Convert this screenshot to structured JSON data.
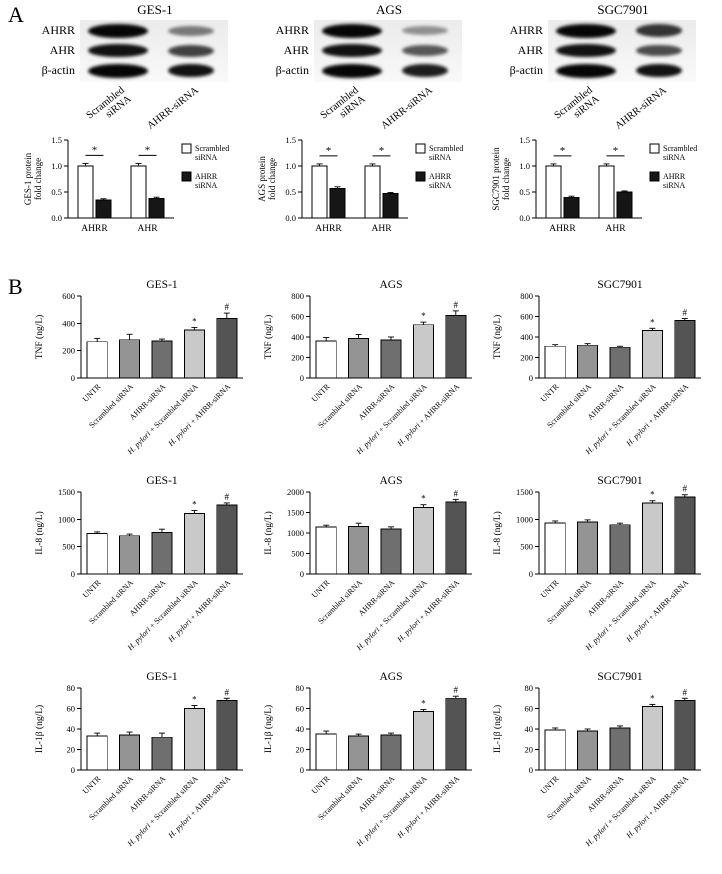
{
  "figure": {
    "panelA_label": "A",
    "panelB_label": "B"
  },
  "panelA": {
    "blots": [
      {
        "title": "GES-1",
        "band_labels": [
          "AHRR",
          "AHR",
          "β-actin"
        ],
        "band_intensities": [
          [
            1.0,
            0.5
          ],
          [
            0.95,
            0.75
          ],
          [
            1.0,
            0.95
          ]
        ],
        "lanes": [
          "Scrambled\nsiRNA",
          "AHRR-siRNA"
        ],
        "chart": {
          "ylabel_lines": [
            "GES-1 protein",
            "fold change"
          ],
          "ylim": [
            0,
            1.5
          ],
          "yticks": [
            0,
            0.5,
            1.0,
            1.5
          ],
          "ytick_labels": [
            "0.0",
            "0.5",
            "1.0",
            "1.5"
          ],
          "categories": [
            "AHRR",
            "AHR"
          ],
          "series": [
            {
              "legend_lines": [
                "Scrambled",
                "siRNA"
              ],
              "color": "#ffffff",
              "values": [
                1.0,
                1.0
              ],
              "errors": [
                0.05,
                0.05
              ]
            },
            {
              "legend_lines": [
                "AHRR",
                "siRNA"
              ],
              "color": "#161616",
              "values": [
                0.35,
                0.38
              ],
              "errors": [
                0.02,
                0.02
              ]
            }
          ],
          "sig_marks": [
            "*",
            "*"
          ]
        }
      },
      {
        "title": "AGS",
        "band_labels": [
          "AHRR",
          "AHR",
          "β-actin"
        ],
        "band_intensities": [
          [
            1.0,
            0.4
          ],
          [
            0.95,
            0.65
          ],
          [
            1.0,
            0.9
          ]
        ],
        "lanes": [
          "Scrambled\nsiRNA",
          "AHRR-siRNA"
        ],
        "chart": {
          "ylabel_lines": [
            "AGS protein",
            "fold change"
          ],
          "ylim": [
            0,
            1.5
          ],
          "yticks": [
            0,
            0.5,
            1.0,
            1.5
          ],
          "ytick_labels": [
            "0.0",
            "0.5",
            "1.0",
            "1.5"
          ],
          "categories": [
            "AHRR",
            "AHR"
          ],
          "series": [
            {
              "legend_lines": [
                "Scrambled",
                "siRNA"
              ],
              "color": "#ffffff",
              "values": [
                1.0,
                1.0
              ],
              "errors": [
                0.04,
                0.04
              ]
            },
            {
              "legend_lines": [
                "AHRR",
                "siRNA"
              ],
              "color": "#161616",
              "values": [
                0.57,
                0.47
              ],
              "errors": [
                0.03,
                0.02
              ]
            }
          ],
          "sig_marks": [
            "*",
            "*"
          ]
        }
      },
      {
        "title": "SGC7901",
        "band_labels": [
          "AHRR",
          "AHR",
          "β-actin"
        ],
        "band_intensities": [
          [
            1.0,
            0.8
          ],
          [
            0.95,
            0.7
          ],
          [
            1.0,
            0.95
          ]
        ],
        "lanes": [
          "Scrambled\nsiRNA",
          "AHRR-siRNA"
        ],
        "chart": {
          "ylabel_lines": [
            "SGC7901 protein",
            "fold change"
          ],
          "ylim": [
            0,
            1.5
          ],
          "yticks": [
            0,
            0.5,
            1.0,
            1.5
          ],
          "ytick_labels": [
            "0.0",
            "0.5",
            "1.0",
            "1.5"
          ],
          "categories": [
            "AHRR",
            "AHR"
          ],
          "series": [
            {
              "legend_lines": [
                "Scrambled",
                "siRNA"
              ],
              "color": "#ffffff",
              "values": [
                1.0,
                1.0
              ],
              "errors": [
                0.04,
                0.04
              ]
            },
            {
              "legend_lines": [
                "AHRR",
                "siRNA"
              ],
              "color": "#161616",
              "values": [
                0.4,
                0.5
              ],
              "errors": [
                0.02,
                0.02
              ]
            }
          ],
          "sig_marks": [
            "*",
            "*"
          ]
        }
      }
    ]
  },
  "panelB": {
    "italic_token": "H. pylori",
    "categories": [
      "UNTR",
      "Scrambled siRNA",
      "AHRR-siRNA",
      "H. pylori + Scrambled siRNA",
      "H. pylori + AHRR-siRNA"
    ],
    "bar_colors": [
      "#ffffff",
      "#949494",
      "#6f6f6f",
      "#c9c9c9",
      "#545454"
    ],
    "charts": [
      {
        "title": "GES-1",
        "ylabel": "TNF (ng/L)",
        "ylim": [
          0,
          600
        ],
        "yticks": [
          0,
          200,
          400,
          600
        ],
        "ytick_labels": [
          "0",
          "200",
          "400",
          "600"
        ],
        "values": [
          265,
          280,
          270,
          350,
          435
        ],
        "errors": [
          25,
          40,
          15,
          20,
          40
        ],
        "annotations": [
          "",
          "",
          "",
          "*",
          "#"
        ]
      },
      {
        "title": "AGS",
        "ylabel": "TNF (ng/L)",
        "ylim": [
          0,
          800
        ],
        "yticks": [
          0,
          200,
          400,
          600,
          800
        ],
        "ytick_labels": [
          "0",
          "200",
          "400",
          "600",
          "800"
        ],
        "values": [
          360,
          385,
          370,
          520,
          610
        ],
        "errors": [
          35,
          40,
          30,
          25,
          45
        ],
        "annotations": [
          "",
          "",
          "",
          "*",
          "#"
        ]
      },
      {
        "title": "SGC7901",
        "ylabel": "TNF (ng/L)",
        "ylim": [
          0,
          800
        ],
        "yticks": [
          0,
          200,
          400,
          600,
          800
        ],
        "ytick_labels": [
          "0",
          "200",
          "400",
          "600",
          "800"
        ],
        "values": [
          310,
          320,
          300,
          465,
          560
        ],
        "errors": [
          15,
          15,
          10,
          20,
          20
        ],
        "annotations": [
          "",
          "",
          "",
          "*",
          "#"
        ]
      },
      {
        "title": "GES-1",
        "ylabel": "IL-8 (ng/L)",
        "ylim": [
          0,
          1500
        ],
        "yticks": [
          0,
          500,
          1000,
          1500
        ],
        "ytick_labels": [
          "0",
          "500",
          "1000",
          "1500"
        ],
        "values": [
          740,
          700,
          760,
          1110,
          1260
        ],
        "errors": [
          30,
          30,
          60,
          50,
          40
        ],
        "annotations": [
          "",
          "",
          "",
          "*",
          "#"
        ]
      },
      {
        "title": "AGS",
        "ylabel": "IL-8 (ng/L)",
        "ylim": [
          0,
          2000
        ],
        "yticks": [
          0,
          500,
          1000,
          1500,
          2000
        ],
        "ytick_labels": [
          "0",
          "500",
          "1000",
          "1500",
          "2000"
        ],
        "values": [
          1150,
          1160,
          1100,
          1620,
          1760
        ],
        "errors": [
          40,
          80,
          50,
          70,
          60
        ],
        "annotations": [
          "",
          "",
          "",
          "*",
          "#"
        ]
      },
      {
        "title": "SGC7901",
        "ylabel": "IL-8 (ng/L)",
        "ylim": [
          0,
          1500
        ],
        "yticks": [
          0,
          500,
          1000,
          1500
        ],
        "ytick_labels": [
          "0",
          "500",
          "1000",
          "1500"
        ],
        "values": [
          930,
          950,
          900,
          1300,
          1410
        ],
        "errors": [
          40,
          40,
          30,
          40,
          40
        ],
        "annotations": [
          "",
          "",
          "",
          "*",
          "#"
        ]
      },
      {
        "title": "GES-1",
        "ylabel": "IL-1β (ng/L)",
        "ylim": [
          0,
          80
        ],
        "yticks": [
          0,
          20,
          40,
          60,
          80
        ],
        "ytick_labels": [
          "0",
          "20",
          "40",
          "60",
          "80"
        ],
        "values": [
          33,
          34,
          32,
          60,
          68
        ],
        "errors": [
          3,
          3,
          4,
          3,
          2
        ],
        "annotations": [
          "",
          "",
          "",
          "*",
          "#"
        ]
      },
      {
        "title": "AGS",
        "ylabel": "IL-1β (ng/L)",
        "ylim": [
          0,
          80
        ],
        "yticks": [
          0,
          20,
          40,
          60,
          80
        ],
        "ytick_labels": [
          "0",
          "20",
          "40",
          "60",
          "80"
        ],
        "values": [
          35,
          33,
          34,
          57,
          70
        ],
        "errors": [
          3,
          2,
          2,
          2,
          2
        ],
        "annotations": [
          "",
          "",
          "",
          "*",
          "#"
        ]
      },
      {
        "title": "SGC7901",
        "ylabel": "IL-1β (ng/L)",
        "ylim": [
          0,
          80
        ],
        "yticks": [
          0,
          20,
          40,
          60,
          80
        ],
        "ytick_labels": [
          "0",
          "20",
          "40",
          "60",
          "80"
        ],
        "values": [
          39,
          38,
          41,
          62,
          68
        ],
        "errors": [
          2,
          2,
          2,
          2,
          2
        ],
        "annotations": [
          "",
          "",
          "",
          "*",
          "#"
        ]
      }
    ]
  }
}
